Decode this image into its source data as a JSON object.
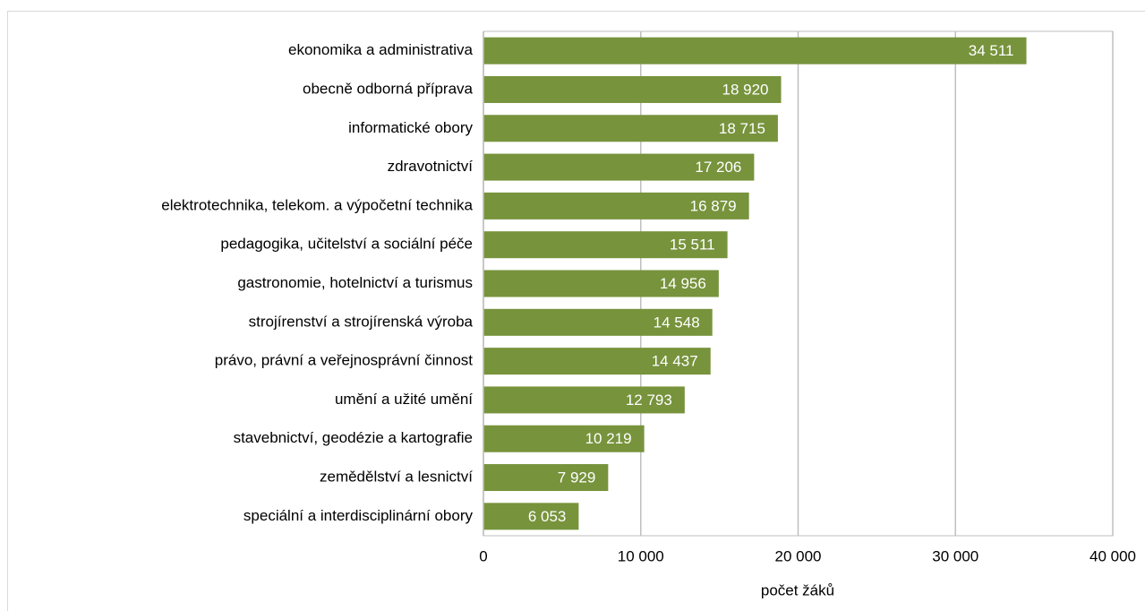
{
  "chart_data": {
    "type": "bar",
    "orientation": "horizontal",
    "x_label": "počet žáků",
    "categories": [
      "ekonomika a administrativa",
      "obecně odborná příprava",
      "informatické obory",
      "zdravotnictví",
      "elektrotechnika, telekom. a výpočetní technika",
      "pedagogika, učitelství a sociální péče",
      "gastronomie, hotelnictví a turismus",
      "strojírenství a strojírenská výroba",
      "právo, právní a veřejnosprávní činnost",
      "umění a užité umění",
      "stavebnictví, geodézie a kartografie",
      "zemědělství a lesnictví",
      "speciální a interdisciplinární obory"
    ],
    "values": [
      34511,
      18920,
      18715,
      17206,
      16879,
      15511,
      14956,
      14548,
      14437,
      12793,
      10219,
      7929,
      6053
    ],
    "value_labels": [
      "34 511",
      "18 920",
      "18 715",
      "17 206",
      "16 879",
      "15 511",
      "14 956",
      "14 548",
      "14 437",
      "12 793",
      "10 219",
      "7 929",
      "6 053"
    ],
    "color": "#77933c",
    "xlim": [
      0,
      40000
    ],
    "xticks": [
      0,
      {
        "value": 10000,
        "label": "10 000"
      },
      {
        "value": 20000,
        "label": "20 000"
      },
      {
        "value": 30000,
        "label": "30 000"
      },
      {
        "value": 40000,
        "label": "40 000"
      }
    ],
    "grid": true
  }
}
